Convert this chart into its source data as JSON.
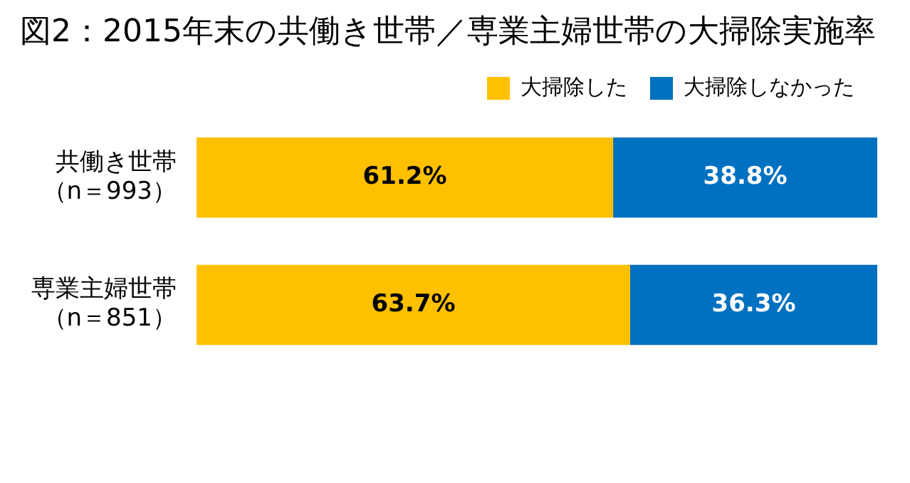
{
  "chart_data": {
    "type": "bar",
    "orientation": "horizontal",
    "stacked": true,
    "title": "図2：2015年末の共働き世帯／専業主婦世帯の大掃除実施率",
    "categories": [
      "共働き世帯（n＝993）",
      "専業主婦世帯（n＝851）"
    ],
    "series": [
      {
        "name": "大掃除した",
        "color": "#ffc000",
        "values": [
          61.2,
          63.7
        ],
        "value_labels": [
          "61.2%",
          "63.7%"
        ]
      },
      {
        "name": "大掃除しなかった",
        "color": "#0070c0",
        "values": [
          38.8,
          36.3
        ],
        "value_labels": [
          "38.8%",
          "36.3%"
        ]
      }
    ],
    "xlim": [
      0,
      100
    ],
    "tick_labels": "y",
    "grid": false,
    "legend": "top right"
  }
}
